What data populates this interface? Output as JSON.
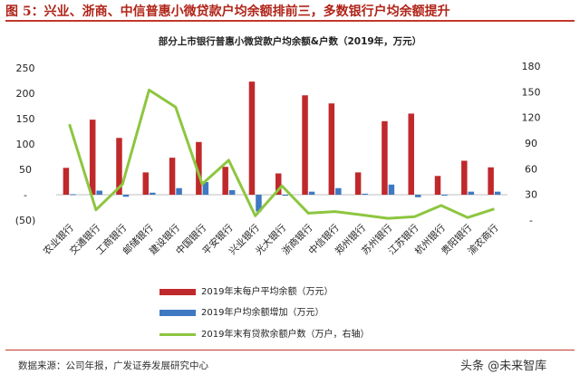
{
  "figure": {
    "title": "图 5：兴业、浙商、中信普惠小微贷款户均余额排前三，多数银行户均余额提升",
    "source": "数据来源：公司年报，广发证券发展研究中心",
    "watermark": "头条 @未来智库"
  },
  "chart_data": {
    "type": "bar",
    "title": "部分上市银行普惠小微贷款户均余额&户数（2019年，万元）",
    "categories": [
      "农业银行",
      "交通银行",
      "工商银行",
      "邮储银行",
      "建设银行",
      "中国银行",
      "平安银行",
      "兴业银行",
      "光大银行",
      "浙商银行",
      "中信银行",
      "郑州银行",
      "苏州银行",
      "江苏银行",
      "杭州银行",
      "贵阳银行",
      "渝农商行"
    ],
    "series": [
      {
        "name": "2019年末每户平均余额（万元）",
        "type": "bar",
        "axis": "left",
        "color": "#c0292b",
        "values": [
          53,
          148,
          112,
          44,
          73,
          104,
          55,
          223,
          42,
          196,
          180,
          44,
          145,
          160,
          37,
          67,
          54
        ]
      },
      {
        "name": "2019年户均余额增加（万元）",
        "type": "bar",
        "axis": "left",
        "color": "#3f79c2",
        "values": [
          1,
          8,
          -4,
          4,
          13,
          25,
          9,
          -33,
          -2,
          6,
          13,
          2,
          20,
          -5,
          0,
          6,
          6
        ]
      },
      {
        "name": "2019年末有贷款余额户数（万户，右轴）",
        "type": "line",
        "axis": "right",
        "color": "#8dc63f",
        "values": [
          112,
          12,
          42,
          152,
          132,
          42,
          70,
          5,
          40,
          8,
          10,
          6,
          2,
          4,
          17,
          3,
          13
        ]
      }
    ],
    "y_left": {
      "ticks": [
        "250",
        "200",
        "150",
        "100",
        "50",
        "-",
        "(50)"
      ],
      "tick_values": [
        250,
        200,
        150,
        100,
        50,
        0,
        -50
      ],
      "ylim": [
        -50,
        250
      ]
    },
    "y_right": {
      "ticks": [
        "180",
        "150",
        "120",
        "90",
        "60",
        "30",
        "-"
      ],
      "tick_values": [
        180,
        150,
        120,
        90,
        60,
        30,
        0
      ],
      "ylim": [
        -30,
        180
      ]
    },
    "legend_position": "bottom-center",
    "grid": false
  }
}
